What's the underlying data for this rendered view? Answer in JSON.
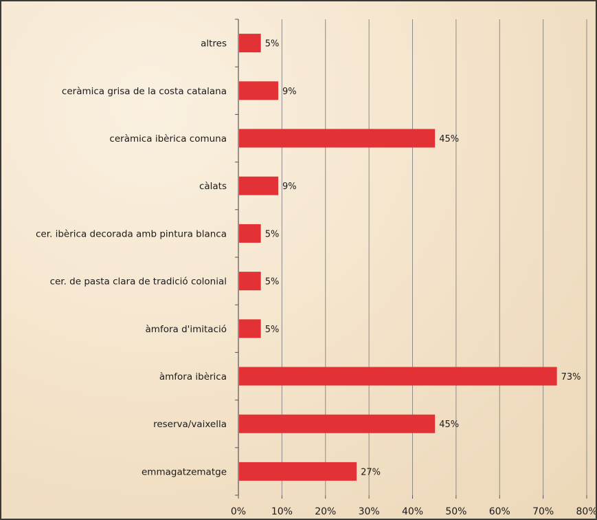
{
  "chart_data": {
    "type": "bar",
    "orientation": "horizontal",
    "title": "",
    "xlabel": "",
    "ylabel": "",
    "categories": [
      "altres",
      "ceràmica grisa de la costa catalana",
      "ceràmica ibèrica comuna",
      "càlats",
      "cer. ibèrica decorada amb  pintura blanca",
      "cer. de pasta clara de tradició colonial",
      "àmfora d'imitació",
      "àmfora ibèrica",
      "reserva/vaixella",
      "emmagatzematge"
    ],
    "values": [
      5,
      9,
      45,
      9,
      5,
      5,
      5,
      73,
      45,
      27
    ],
    "value_labels": [
      "5%",
      "9%",
      "45%",
      "9%",
      "5%",
      "5%",
      "5%",
      "73%",
      "45%",
      "27%"
    ],
    "xlim": [
      0,
      80
    ],
    "x_ticks": [
      "0%",
      "10%",
      "20%",
      "30%",
      "40%",
      "50%",
      "60%",
      "70%",
      "80%"
    ],
    "grid": "vertical",
    "legend": "none",
    "bar_color": "#e23236"
  }
}
